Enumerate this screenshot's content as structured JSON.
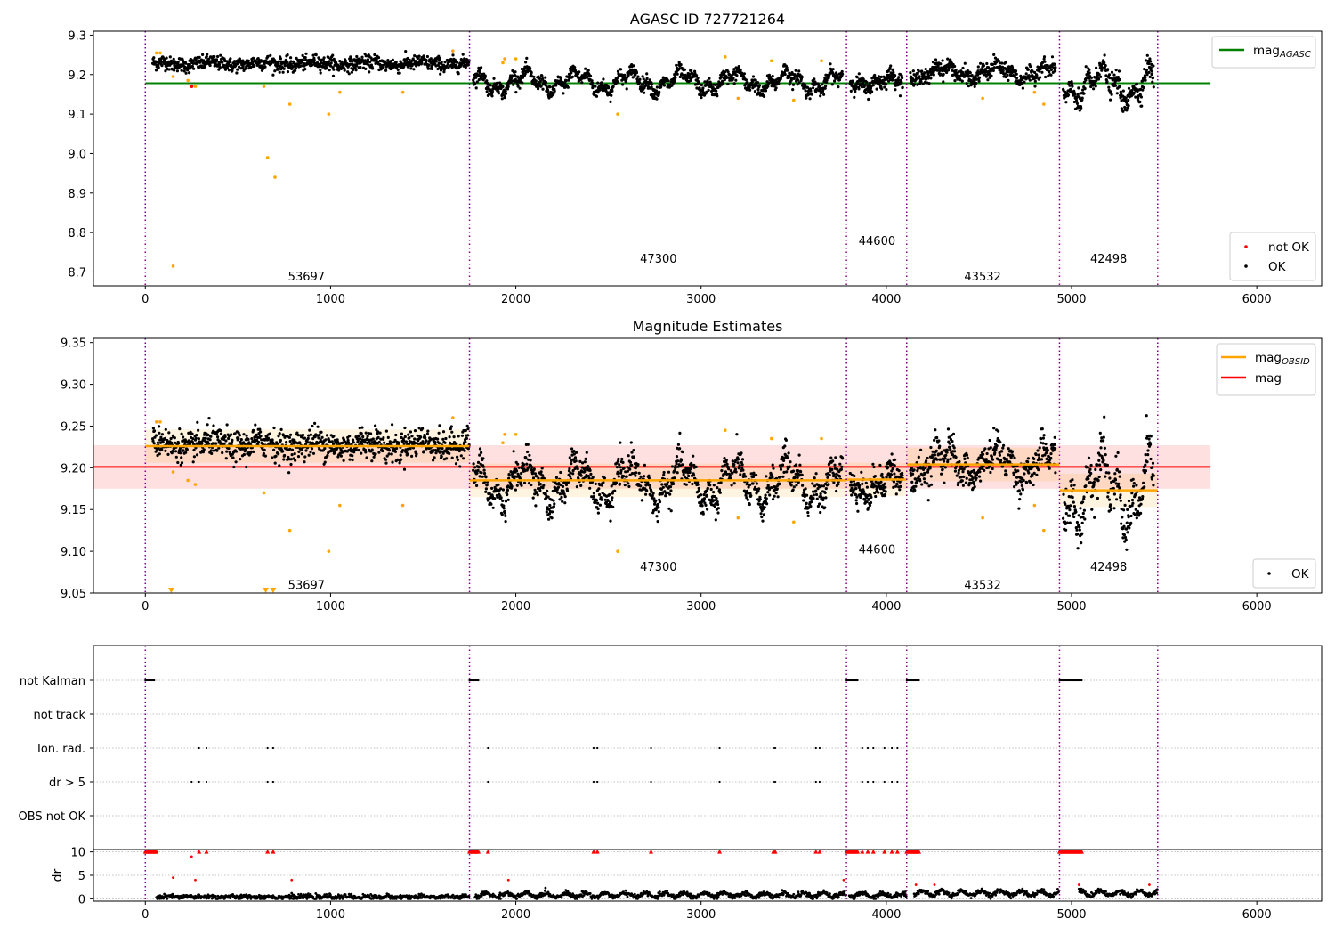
{
  "chart_data": [
    {
      "type": "scatter",
      "title": "AGASC ID 727721264",
      "xlim": [
        -280,
        6350
      ],
      "ylim": [
        8.665,
        9.31
      ],
      "xticks": [
        0,
        1000,
        2000,
        3000,
        4000,
        5000,
        6000
      ],
      "yticks": [
        8.7,
        8.8,
        8.9,
        9.0,
        9.1,
        9.2,
        9.3
      ],
      "ytick_decimals": 1,
      "legend_lines": [
        {
          "label": "mag",
          "sub": "AGASC",
          "color": "#008000"
        }
      ],
      "legend_points": [
        {
          "label": "not OK",
          "color": "#ff0000"
        },
        {
          "label": "OK",
          "color": "#000000"
        }
      ],
      "hlines": [
        {
          "y": 9.178,
          "x0": 0,
          "x1": 5750,
          "color": "#008000",
          "width": 2
        }
      ],
      "segments": [
        {
          "x0": 0,
          "x1": 1750,
          "mean": 9.228,
          "sd": 0.009,
          "osc": 0.004
        },
        {
          "x0": 1750,
          "x1": 3785,
          "mean": 9.182,
          "sd": 0.009,
          "osc": 0.02
        },
        {
          "x0": 3785,
          "x1": 4110,
          "mean": 9.182,
          "sd": 0.01,
          "osc": 0.012
        },
        {
          "x0": 4110,
          "x1": 4935,
          "mean": 9.205,
          "sd": 0.01,
          "osc": 0.015
        },
        {
          "x0": 4935,
          "x1": 5465,
          "mean": 9.175,
          "sd": 0.014,
          "osc": 0.035
        }
      ],
      "vlines": [
        0,
        1750,
        3785,
        4110,
        4935,
        5465
      ],
      "obsid_labels": [
        {
          "x": 870,
          "y": 8.69,
          "text": "53697"
        },
        {
          "x": 2770,
          "y": 8.735,
          "text": "47300"
        },
        {
          "x": 3950,
          "y": 8.78,
          "text": "44600"
        },
        {
          "x": 4520,
          "y": 8.69,
          "text": "43532"
        },
        {
          "x": 5200,
          "y": 8.735,
          "text": "42498"
        }
      ],
      "orange_points": [
        [
          60,
          9.255
        ],
        [
          80,
          9.255
        ],
        [
          150,
          9.195
        ],
        [
          230,
          9.185
        ],
        [
          270,
          9.17
        ],
        [
          640,
          9.17
        ],
        [
          660,
          8.99
        ],
        [
          700,
          8.94
        ],
        [
          780,
          9.125
        ],
        [
          990,
          9.1
        ],
        [
          1050,
          9.155
        ],
        [
          1390,
          9.155
        ],
        [
          1660,
          9.26
        ],
        [
          1930,
          9.23
        ],
        [
          1940,
          9.24
        ],
        [
          2000,
          9.24
        ],
        [
          2550,
          9.1
        ],
        [
          3130,
          9.245
        ],
        [
          3200,
          9.14
        ],
        [
          3380,
          9.235
        ],
        [
          3500,
          9.135
        ],
        [
          3650,
          9.235
        ],
        [
          4520,
          9.14
        ],
        [
          4800,
          9.155
        ],
        [
          4850,
          9.125
        ],
        [
          150,
          8.715
        ]
      ],
      "red_points": [
        [
          250,
          9.17
        ]
      ]
    },
    {
      "type": "scatter",
      "title": "Magnitude Estimates",
      "xlim": [
        -280,
        6350
      ],
      "ylim": [
        9.05,
        9.355
      ],
      "xticks": [
        0,
        1000,
        2000,
        3000,
        4000,
        5000,
        6000
      ],
      "yticks": [
        9.05,
        9.1,
        9.15,
        9.2,
        9.25,
        9.3,
        9.35
      ],
      "ytick_decimals": 2,
      "legend_lines": [
        {
          "label": "mag",
          "sub": "OBSID",
          "color": "#ffa500"
        },
        {
          "label": "mag",
          "sub": "",
          "color": "#ff0000"
        }
      ],
      "legend_points": [
        {
          "label": "OK",
          "color": "#000000"
        }
      ],
      "band": {
        "x0": -280,
        "x1": 5750,
        "y0": 9.175,
        "y1": 9.227,
        "color": "#ffcccc"
      },
      "hlines": [
        {
          "y": 9.201,
          "x0": -280,
          "x1": 5750,
          "color": "#ff0000",
          "width": 2
        }
      ],
      "obs_means": [
        {
          "x0": 0,
          "x1": 1750,
          "y": 9.226
        },
        {
          "x0": 1750,
          "x1": 3785,
          "y": 9.185
        },
        {
          "x0": 3785,
          "x1": 4110,
          "y": 9.186
        },
        {
          "x0": 4110,
          "x1": 4935,
          "y": 9.204
        },
        {
          "x0": 4935,
          "x1": 5465,
          "y": 9.173
        }
      ],
      "segments": [
        {
          "x0": 0,
          "x1": 1750,
          "mean": 9.228,
          "sd": 0.009,
          "osc": 0.004
        },
        {
          "x0": 1750,
          "x1": 3785,
          "mean": 9.182,
          "sd": 0.009,
          "osc": 0.02
        },
        {
          "x0": 3785,
          "x1": 4110,
          "mean": 9.182,
          "sd": 0.01,
          "osc": 0.012
        },
        {
          "x0": 4110,
          "x1": 4935,
          "mean": 9.205,
          "sd": 0.01,
          "osc": 0.015
        },
        {
          "x0": 4935,
          "x1": 5465,
          "mean": 9.175,
          "sd": 0.014,
          "osc": 0.035
        }
      ],
      "vlines": [
        0,
        1750,
        3785,
        4110,
        4935,
        5465
      ],
      "obsid_labels": [
        {
          "x": 870,
          "y": 9.06,
          "text": "53697"
        },
        {
          "x": 2770,
          "y": 9.082,
          "text": "47300"
        },
        {
          "x": 3950,
          "y": 9.103,
          "text": "44600"
        },
        {
          "x": 4520,
          "y": 9.06,
          "text": "43532"
        },
        {
          "x": 5200,
          "y": 9.082,
          "text": "42498"
        }
      ],
      "orange_points": [
        [
          60,
          9.255
        ],
        [
          80,
          9.255
        ],
        [
          150,
          9.195
        ],
        [
          230,
          9.185
        ],
        [
          270,
          9.18
        ],
        [
          640,
          9.17
        ],
        [
          780,
          9.125
        ],
        [
          990,
          9.1
        ],
        [
          1050,
          9.155
        ],
        [
          1390,
          9.155
        ],
        [
          1660,
          9.26
        ],
        [
          1930,
          9.23
        ],
        [
          1940,
          9.24
        ],
        [
          2000,
          9.24
        ],
        [
          2550,
          9.1
        ],
        [
          3130,
          9.245
        ],
        [
          3200,
          9.14
        ],
        [
          3380,
          9.235
        ],
        [
          3500,
          9.135
        ],
        [
          3650,
          9.235
        ],
        [
          4520,
          9.14
        ],
        [
          4800,
          9.155
        ],
        [
          4850,
          9.125
        ]
      ],
      "tri_down": [
        140,
        650,
        690
      ]
    },
    {
      "type": "scatter",
      "xlim": [
        -280,
        6350
      ],
      "xticks": [
        0,
        1000,
        2000,
        3000,
        4000,
        5000,
        6000
      ],
      "flag_rows": [
        "not Kalman",
        "not track",
        "Ion. rad.",
        "dr > 5",
        "OBS not OK"
      ],
      "flag_points": {
        "not Kalman": [
          [
            0,
            50
          ],
          [
            1750,
            1800
          ],
          [
            3785,
            3850
          ],
          [
            4110,
            4180
          ],
          [
            4935,
            5060
          ]
        ],
        "Ion. rad.": [
          290,
          330,
          660,
          690,
          1850,
          2420,
          2440,
          2730,
          3100,
          3390,
          3400,
          3620,
          3640,
          3870,
          3900,
          3930,
          3990,
          4030,
          4060
        ],
        "dr > 5": [
          250,
          290,
          330,
          660,
          690,
          1850,
          2420,
          2440,
          2730,
          3100,
          3390,
          3400,
          3620,
          3640,
          3870,
          3900,
          3930,
          3990,
          4030,
          4060
        ]
      },
      "dr_ylabel": "dr",
      "dr_ylim": [
        -0.5,
        10.5
      ],
      "dr_yticks": [
        0,
        5,
        10
      ],
      "dr_red_clip": [
        [
          0,
          60
        ],
        [
          1750,
          1800
        ],
        [
          3785,
          3850
        ],
        [
          4110,
          4180
        ],
        [
          4935,
          5060
        ]
      ],
      "dr_red_extra": [
        [
          290,
          10
        ],
        [
          330,
          10
        ],
        [
          660,
          10
        ],
        [
          690,
          10
        ],
        [
          1850,
          10
        ],
        [
          2420,
          10
        ],
        [
          2440,
          10
        ],
        [
          2730,
          10
        ],
        [
          3100,
          10
        ],
        [
          3390,
          10
        ],
        [
          3400,
          10
        ],
        [
          3620,
          10
        ],
        [
          3640,
          10
        ],
        [
          3870,
          10
        ],
        [
          3900,
          10
        ],
        [
          3930,
          10
        ],
        [
          3990,
          10
        ],
        [
          4030,
          10
        ],
        [
          4060,
          10
        ],
        [
          250,
          9
        ],
        [
          150,
          4.5
        ],
        [
          270,
          4
        ],
        [
          790,
          4
        ],
        [
          1960,
          4
        ],
        [
          3770,
          4
        ],
        [
          4160,
          3
        ],
        [
          4260,
          3
        ],
        [
          5040,
          3
        ],
        [
          5420,
          3
        ]
      ],
      "dr_segments": [
        {
          "x0": 60,
          "x1": 1750,
          "level": 0.4,
          "amp": 0.2
        },
        {
          "x0": 1780,
          "x1": 3785,
          "level": 0.8,
          "amp": 0.9
        },
        {
          "x0": 3800,
          "x1": 4110,
          "level": 0.8,
          "amp": 0.8
        },
        {
          "x0": 4150,
          "x1": 4935,
          "level": 1.2,
          "amp": 1.0
        },
        {
          "x0": 5040,
          "x1": 5465,
          "level": 1.2,
          "amp": 1.0
        }
      ]
    }
  ]
}
